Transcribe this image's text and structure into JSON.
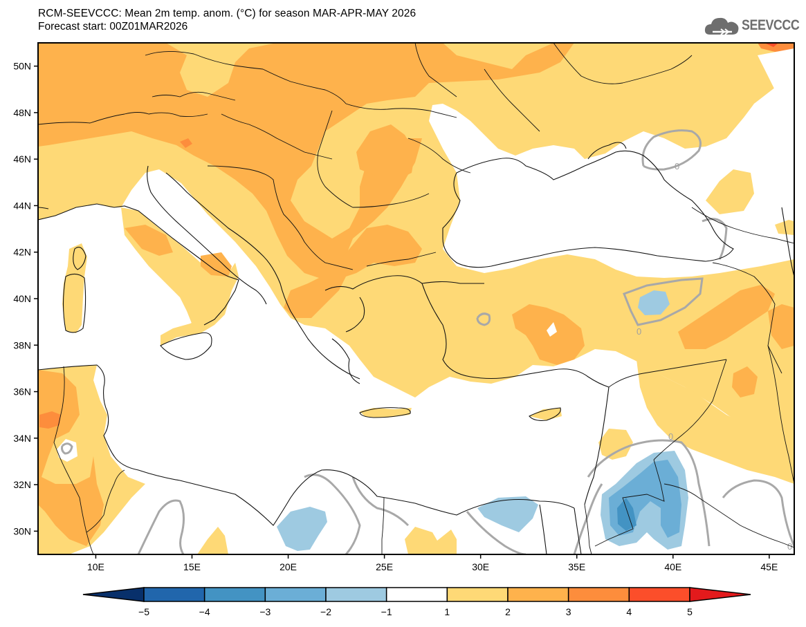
{
  "header": {
    "title": "RCM-SEEVCCC: Mean 2m temp. anom. (°C) for season MAR-APR-MAY 2026",
    "subtitle": "Forecast start: 00Z01MAR2026",
    "logo_text": "SEEVCCC",
    "logo_icon": "cloud-icon"
  },
  "map": {
    "variable": "Mean 2m temperature anomaly",
    "units": "°C",
    "season": "MAR-APR-MAY 2026",
    "lon_range": [
      7,
      46.3
    ],
    "lat_range": [
      29,
      51
    ],
    "lon_ticks": [
      "10E",
      "15E",
      "20E",
      "25E",
      "30E",
      "35E",
      "40E",
      "45E"
    ],
    "lon_tick_values": [
      10,
      15,
      20,
      25,
      30,
      35,
      40,
      45
    ],
    "lat_ticks": [
      "30N",
      "32N",
      "34N",
      "36N",
      "38N",
      "40N",
      "42N",
      "44N",
      "46N",
      "48N",
      "50N"
    ],
    "lat_tick_values": [
      30,
      32,
      34,
      36,
      38,
      40,
      42,
      44,
      46,
      48,
      50
    ],
    "zero_contour_label": "0"
  },
  "colorbar": {
    "labels": [
      "-5",
      "-4",
      "-3",
      "-2",
      "-1",
      "1",
      "2",
      "3",
      "4",
      "5"
    ],
    "bins": [
      {
        "range": "< -5",
        "color": "#08306b"
      },
      {
        "range": "-5 to -4",
        "color": "#2166ac"
      },
      {
        "range": "-4 to -3",
        "color": "#4393c3"
      },
      {
        "range": "-3 to -2",
        "color": "#6baed6"
      },
      {
        "range": "-2 to -1",
        "color": "#9ecae1"
      },
      {
        "range": "-1 to 1",
        "color": "#ffffff"
      },
      {
        "range": "1 to 2",
        "color": "#fed976"
      },
      {
        "range": "2 to 3",
        "color": "#feb24c"
      },
      {
        "range": "3 to 4",
        "color": "#fd8d3c"
      },
      {
        "range": "4 to 5",
        "color": "#fc4e2a"
      },
      {
        "range": "> 5",
        "color": "#e31a1c"
      }
    ]
  }
}
